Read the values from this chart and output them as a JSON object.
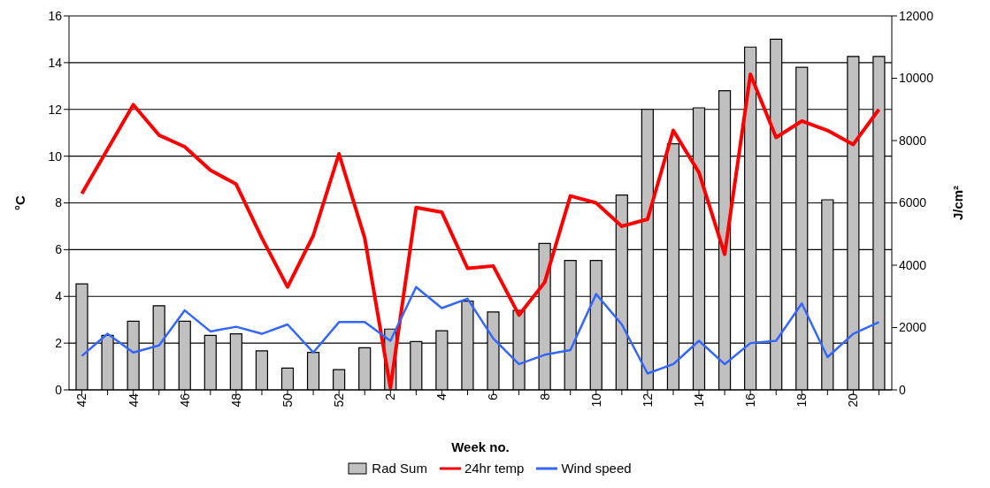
{
  "chart_data": {
    "type": "bar",
    "xlabel": "Week no.",
    "ylabel": "°C",
    "y2label": "J/cm²",
    "categories": [
      "42",
      null,
      "44",
      null,
      "46",
      null,
      "48",
      null,
      "50",
      null,
      "52",
      null,
      "2",
      null,
      "4",
      null,
      "6",
      null,
      "8",
      null,
      "10",
      null,
      "12",
      null,
      "14",
      null,
      "16",
      null,
      "18",
      null,
      "20",
      null
    ],
    "series": [
      {
        "name": "Rad Sum",
        "axis": "y2",
        "color": "#c0c0c0",
        "values": [
          3400,
          1750,
          2200,
          2700,
          2200,
          1750,
          1800,
          1250,
          700,
          1200,
          650,
          1350,
          1950,
          1550,
          1900,
          2850,
          2500,
          2550,
          4700,
          4150,
          4150,
          6250,
          9000,
          7900,
          9050,
          9600,
          11000,
          11250,
          10350,
          6100,
          10700,
          10700
        ]
      },
      {
        "name": "24hr temp",
        "type": "line",
        "color": "#ff0000",
        "values": [
          8.4,
          10.3,
          12.2,
          10.9,
          10.4,
          9.4,
          8.8,
          6.5,
          4.4,
          6.6,
          10.1,
          6.5,
          0.1,
          7.8,
          7.6,
          5.2,
          5.3,
          3.2,
          4.6,
          8.3,
          8.0,
          7.0,
          7.3,
          11.1,
          9.3,
          5.8,
          13.5,
          10.8,
          11.5,
          11.1,
          10.5,
          12.0
        ]
      },
      {
        "name": "Wind speed",
        "type": "line",
        "color": "#3366ff",
        "values": [
          1.45,
          2.4,
          1.6,
          1.9,
          3.4,
          2.5,
          2.7,
          2.4,
          2.8,
          1.6,
          2.9,
          2.9,
          2.1,
          4.4,
          3.5,
          3.9,
          2.2,
          1.1,
          1.5,
          1.7,
          4.1,
          2.8,
          0.7,
          1.1,
          2.1,
          1.1,
          2.0,
          2.1,
          3.7,
          1.4,
          2.4,
          2.9
        ]
      }
    ],
    "ylim": [
      0,
      16
    ],
    "yticks": [
      0,
      2,
      4,
      6,
      8,
      10,
      12,
      14,
      16
    ],
    "y2lim": [
      0,
      12000
    ],
    "y2ticks": [
      0,
      2000,
      4000,
      6000,
      8000,
      10000,
      12000
    ],
    "grid": "y",
    "legend": "bottom",
    "marker": "none",
    "line_style": "solid"
  }
}
